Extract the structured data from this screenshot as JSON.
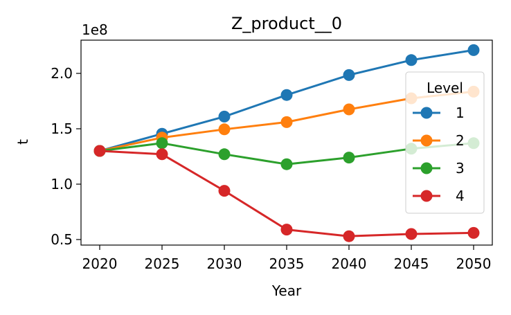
{
  "chart_data": {
    "type": "line",
    "title": "Z_product__0",
    "xlabel": "Year",
    "ylabel": "t",
    "y_multiplier_label": "1e8",
    "x": [
      2020,
      2025,
      2030,
      2035,
      2040,
      2045,
      2050
    ],
    "x_ticks": [
      2020,
      2025,
      2030,
      2035,
      2040,
      2045,
      2050
    ],
    "xlim": [
      2018.5,
      2051.5
    ],
    "y_ticks": [
      0.5,
      1.0,
      1.5,
      2.0
    ],
    "y_tick_labels": [
      "0.5",
      "1.0",
      "1.5",
      "2.0"
    ],
    "ylim": [
      0.45,
      2.3
    ],
    "grid": false,
    "legend": {
      "title": "Level",
      "placement": "right"
    },
    "series": [
      {
        "name": "1",
        "color": "#1f77b4",
        "values": [
          1.3,
          1.455,
          1.61,
          1.805,
          1.985,
          2.12,
          2.21
        ]
      },
      {
        "name": "2",
        "color": "#ff7f0e",
        "values": [
          1.3,
          1.42,
          1.495,
          1.56,
          1.675,
          1.775,
          1.835
        ]
      },
      {
        "name": "3",
        "color": "#2ca02c",
        "values": [
          1.3,
          1.37,
          1.27,
          1.18,
          1.24,
          1.32,
          1.37
        ]
      },
      {
        "name": "4",
        "color": "#d62728",
        "values": [
          1.3,
          1.27,
          0.94,
          0.59,
          0.53,
          0.55,
          0.56
        ]
      }
    ]
  }
}
